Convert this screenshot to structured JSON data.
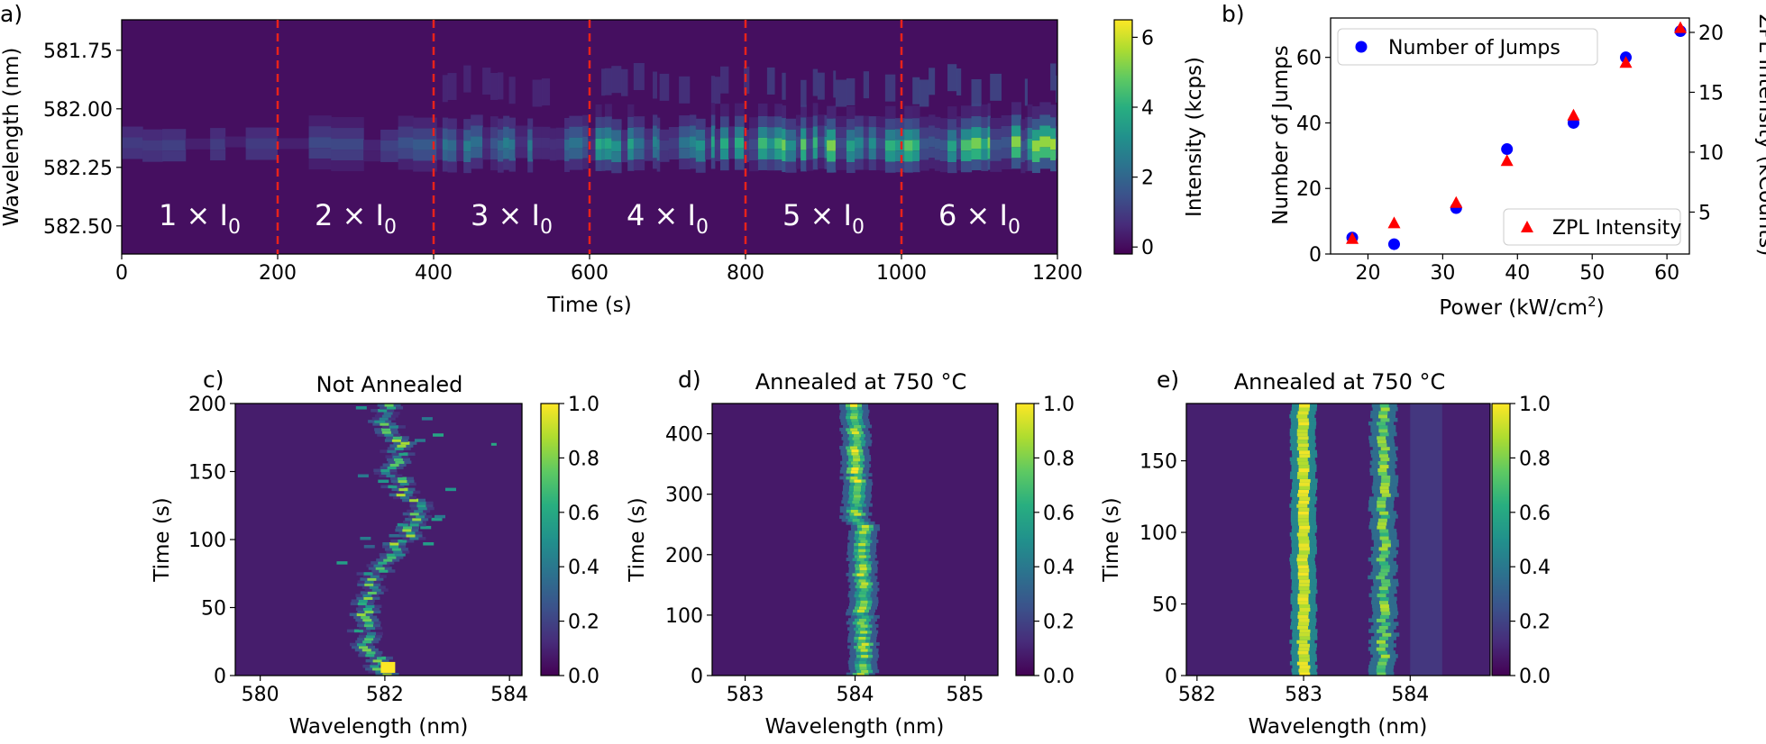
{
  "chart_data": [
    {
      "panel": "a)",
      "type": "heatmap",
      "title": "",
      "xlabel": "Time (s)",
      "ylabel": "Wavelength (nm)",
      "xlim": [
        0,
        1200
      ],
      "ylim": [
        582.62,
        581.62
      ],
      "x_ticks": [
        "0",
        "200",
        "400",
        "600",
        "800",
        "1000",
        "1200"
      ],
      "y_ticks": [
        "581.75",
        "582.00",
        "582.25",
        "582.50"
      ],
      "colorbar": {
        "label": "Intensity (kcps)",
        "ticks": [
          "0",
          "2",
          "4",
          "6"
        ],
        "range": [
          -0.2,
          6.5
        ]
      },
      "divider_times": [
        200,
        400,
        600,
        800,
        1000
      ],
      "divider_color": "#e8221b",
      "segment_labels": [
        "1 × I",
        "2 × I",
        "3 × I",
        "4 × I",
        "5 × I",
        "6 × I"
      ],
      "segment_subscript": "0",
      "band_center_nm": 582.15,
      "segment_peak_intensity_kcps": [
        1.6,
        1.9,
        2.8,
        4.0,
        5.2,
        6.2
      ]
    },
    {
      "panel": "b)",
      "type": "scatter",
      "title": "",
      "xlabel": "Power (kW/cm",
      "xlabel_sup": "2",
      "xlabel_end": ")",
      "ylabel": "Number of Jumps",
      "y2label": "ZPL Intensity (kCounts)",
      "xlim": [
        15,
        63
      ],
      "ylim": [
        0,
        72
      ],
      "y2lim": [
        1.5,
        21.2
      ],
      "x_ticks": [
        "20",
        "30",
        "40",
        "50",
        "60"
      ],
      "y_ticks": [
        "0",
        "20",
        "40",
        "60"
      ],
      "y2_ticks": [
        "5",
        "10",
        "15",
        "20"
      ],
      "series": [
        {
          "name": "Number of Jumps",
          "axis": "left",
          "marker": "circle",
          "color": "#0000ff",
          "x": [
            17.9,
            23.5,
            31.8,
            38.6,
            47.5,
            54.5,
            61.8
          ],
          "y": [
            5,
            3,
            14,
            32,
            40,
            60,
            68
          ]
        },
        {
          "name": "ZPL Intensity",
          "axis": "right",
          "marker": "triangle",
          "color": "#ff0000",
          "x": [
            17.9,
            23.5,
            31.8,
            38.6,
            47.5,
            54.5,
            61.8
          ],
          "y": [
            2.8,
            4.1,
            5.8,
            9.3,
            13.1,
            17.5,
            20.4
          ]
        }
      ]
    },
    {
      "panel": "c)",
      "type": "heatmap",
      "title": "Not Annealed",
      "xlabel": "Wavelength (nm)",
      "ylabel": "Time (s)",
      "xlim": [
        579.6,
        584.2
      ],
      "ylim": [
        0,
        200
      ],
      "x_ticks": [
        "580",
        "582",
        "584"
      ],
      "y_ticks": [
        "0",
        "50",
        "100",
        "150",
        "200"
      ],
      "colorbar": {
        "ticks": [
          "0.0",
          "0.2",
          "0.4",
          "0.6",
          "0.8",
          "1.0"
        ],
        "range": [
          0,
          1
        ]
      },
      "peak_trace": {
        "t": [
          0,
          10,
          20,
          30,
          40,
          50,
          60,
          70,
          80,
          90,
          100,
          110,
          120,
          130,
          140,
          150,
          160,
          170,
          180,
          190,
          200
        ],
        "wl": [
          582.0,
          581.85,
          581.75,
          581.7,
          581.65,
          581.7,
          581.75,
          581.8,
          581.9,
          582.1,
          582.35,
          582.5,
          582.6,
          582.4,
          582.2,
          582.1,
          582.15,
          582.3,
          582.1,
          582.0,
          582.2
        ]
      }
    },
    {
      "panel": "d)",
      "type": "heatmap",
      "title": "Annealed at 750 °C",
      "xlabel": "Wavelength (nm)",
      "ylabel": "Time (s)",
      "xlim": [
        582.7,
        585.3
      ],
      "ylim": [
        0,
        450
      ],
      "x_ticks": [
        "583",
        "584",
        "585"
      ],
      "y_ticks": [
        "0",
        "100",
        "200",
        "300",
        "400"
      ],
      "colorbar": {
        "ticks": [
          "0.0",
          "0.2",
          "0.4",
          "0.6",
          "0.8",
          "1.0"
        ],
        "range": [
          0,
          1
        ]
      },
      "line_center_nm": 584.05
    },
    {
      "panel": "e)",
      "type": "heatmap",
      "title": "Annealed at 750 °C",
      "xlabel": "Wavelength (nm)",
      "ylabel": "Time (s)",
      "xlim": [
        581.9,
        584.75
      ],
      "ylim": [
        0,
        190
      ],
      "x_ticks": [
        "582",
        "583",
        "584"
      ],
      "y_ticks": [
        "0",
        "50",
        "100",
        "150"
      ],
      "colorbar": {
        "ticks": [
          "0.0",
          "0.2",
          "0.4",
          "0.6",
          "0.8",
          "1.0"
        ],
        "range": [
          0,
          1
        ]
      },
      "line_centers_nm": [
        583.0,
        583.75
      ]
    }
  ]
}
